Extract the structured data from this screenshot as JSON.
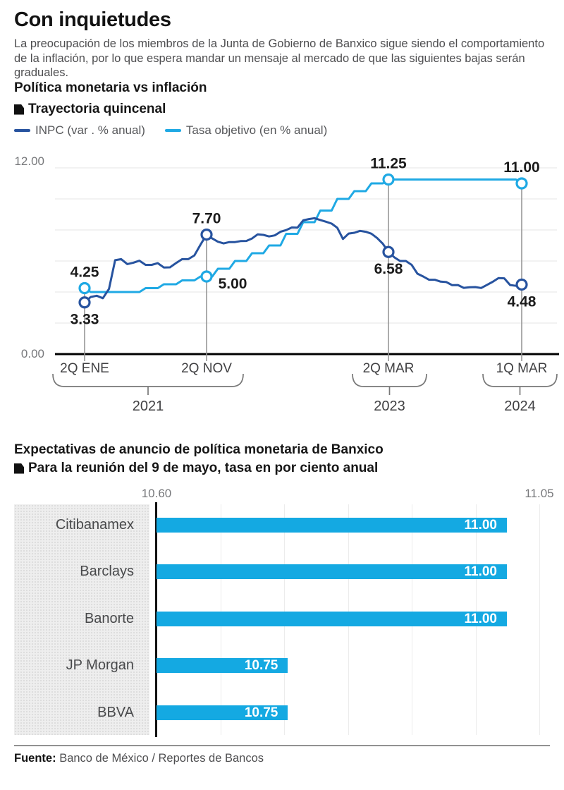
{
  "page": {
    "title": "Con inquietudes",
    "subtitle": "La preocupación de los miembros de la Junta de Gobierno de Banxico sigue siendo el comportamiento de la inflación, por lo que espera mandar un mensaje al mercado de que las siguientes bajas serán graduales.",
    "footer": {
      "label": "Fuente:",
      "text": "Banco de México / Reportes de Bancos"
    }
  },
  "colors": {
    "inpc_blue": "#27539f",
    "tasa_cyan": "#1fa9e4",
    "bar_cyan": "#14a9e2",
    "annotation": "#1b1b1b",
    "axis_black": "#000000",
    "ref_gray": "#979797",
    "grid_gray": "#e9e9e9",
    "bracket_gray": "#787878"
  },
  "chart_data": [
    {
      "type": "line",
      "title": "Política monetaria vs inflación",
      "subtitle": "Trayectoria quincenal",
      "legend_position": "top-left",
      "grid": "horizontal every 2",
      "ylim": [
        0,
        12
      ],
      "ytick_labels": [
        "12.00",
        "0.00"
      ],
      "x_unit": "quincena",
      "x_count": 76,
      "x_anchors": [
        [
          0,
          120
        ],
        [
          20,
          293
        ],
        [
          52,
          551
        ],
        [
          75,
          740
        ]
      ],
      "legend": [
        {
          "name": "INPC (var . % anual)",
          "color": "#27539f"
        },
        {
          "name": "Tasa objetivo (en % anual)",
          "color": "#1fa9e4"
        }
      ],
      "series": [
        {
          "key": "inpc",
          "name": "INPC (var . % anual)",
          "color": "#27539f",
          "values": [
            3.33,
            3.68,
            3.76,
            3.6,
            4.2,
            6.05,
            6.12,
            5.8,
            5.89,
            6.02,
            5.75,
            5.75,
            5.86,
            5.58,
            5.59,
            5.87,
            6.12,
            6.12,
            6.36,
            7.05,
            7.7,
            7.45,
            7.24,
            7.13,
            7.22,
            7.22,
            7.28,
            7.29,
            7.45,
            7.72,
            7.68,
            7.58,
            7.65,
            7.88,
            7.99,
            8.16,
            8.15,
            8.62,
            8.7,
            8.76,
            8.64,
            8.53,
            8.41,
            8.14,
            7.42,
            7.77,
            7.82,
            7.94,
            7.88,
            7.76,
            7.48,
            7.12,
            6.58,
            6.24,
            6.0,
            6.0,
            5.75,
            5.18,
            5.0,
            4.79,
            4.79,
            4.67,
            4.64,
            4.44,
            4.45,
            4.27,
            4.31,
            4.32,
            4.26,
            4.46,
            4.66,
            4.9,
            4.88,
            4.45,
            4.4,
            4.48
          ]
        },
        {
          "key": "tasa",
          "name": "Tasa objetivo (en % anual)",
          "color": "#1fa9e4",
          "values": [
            4.25,
            4.0,
            4.0,
            4.0,
            4.0,
            4.0,
            4.0,
            4.0,
            4.0,
            4.0,
            4.25,
            4.25,
            4.25,
            4.5,
            4.5,
            4.5,
            4.75,
            4.75,
            4.75,
            5.0,
            5.0,
            5.0,
            5.5,
            5.5,
            5.5,
            6.0,
            6.0,
            6.0,
            6.5,
            6.5,
            6.5,
            7.0,
            7.0,
            7.0,
            7.75,
            7.75,
            7.75,
            8.5,
            8.5,
            8.5,
            9.25,
            9.25,
            9.25,
            10.0,
            10.0,
            10.0,
            10.5,
            10.5,
            10.5,
            11.0,
            11.0,
            11.0,
            11.25,
            11.25,
            11.25,
            11.25,
            11.25,
            11.25,
            11.25,
            11.25,
            11.25,
            11.25,
            11.25,
            11.25,
            11.25,
            11.25,
            11.25,
            11.25,
            11.25,
            11.25,
            11.25,
            11.25,
            11.25,
            11.25,
            11.25,
            11.0
          ]
        }
      ],
      "annotations": [
        {
          "index": 0,
          "series": "tasa",
          "value": 4.25,
          "label": "4.25",
          "position": "above"
        },
        {
          "index": 0,
          "series": "inpc",
          "value": 3.33,
          "label": "3.33",
          "position": "below"
        },
        {
          "index": 20,
          "series": "inpc",
          "value": 7.7,
          "label": "7.70",
          "position": "above"
        },
        {
          "index": 20,
          "series": "tasa",
          "value": 5.0,
          "label": "5.00",
          "position": "below-right"
        },
        {
          "index": 52,
          "series": "tasa",
          "value": 11.25,
          "label": "11.25",
          "position": "above"
        },
        {
          "index": 52,
          "series": "inpc",
          "value": 6.58,
          "label": "6.58",
          "position": "below"
        },
        {
          "index": 75,
          "series": "tasa",
          "value": 11.0,
          "label": "11.00",
          "position": "above"
        },
        {
          "index": 75,
          "series": "inpc",
          "value": 4.48,
          "label": "4.48",
          "position": "below"
        }
      ],
      "x_axis": {
        "ticks": [
          {
            "index": 0,
            "label": "2Q ENE"
          },
          {
            "index": 20,
            "label": "2Q NOV"
          },
          {
            "index": 52,
            "label": "2Q MAR"
          },
          {
            "index": 75,
            "label": "1Q MAR"
          }
        ],
        "year_brackets": [
          {
            "label": "2021",
            "x_from": 75,
            "x_to": 345
          },
          {
            "label": "2023",
            "x_from": 500,
            "x_to": 605
          },
          {
            "label": "2024",
            "x_from": 685,
            "x_to": 790
          }
        ]
      }
    },
    {
      "type": "bar",
      "orientation": "horizontal",
      "title": "Expectativas de anuncio de política monetaria de Banxico",
      "subtitle": "Para la reunión del 9 de mayo, tasa en por ciento anual",
      "xlim": [
        10.6,
        11.05
      ],
      "xtick_labels": [
        "10.60",
        "11.05"
      ],
      "categories": [
        "Citibanamex",
        "Barclays",
        "Banorte",
        "JP Morgan",
        "BBVA"
      ],
      "values": [
        11.0,
        11.0,
        11.0,
        10.75,
        10.75
      ],
      "value_labels": [
        "11.00",
        "11.00",
        "11.00",
        "10.75",
        "10.75"
      ]
    }
  ]
}
